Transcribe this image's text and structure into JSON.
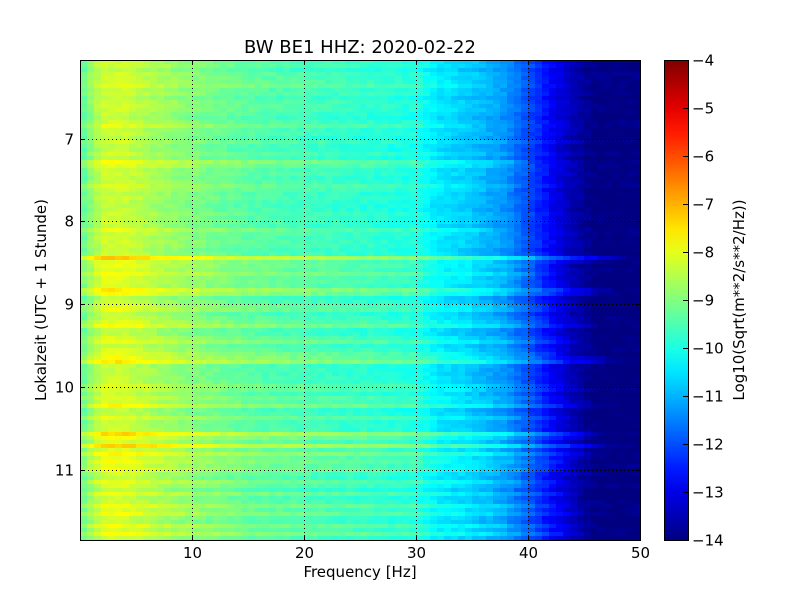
{
  "chart_data": {
    "type": "heatmap",
    "title": "BW BE1 HHZ: 2020-02-22",
    "xlabel": "Frequency [Hz]",
    "ylabel": "Lokalzeit (UTC + 1 Stunde)",
    "xlim": [
      0,
      50
    ],
    "ylim": [
      6.05,
      11.85
    ],
    "y_inverted": true,
    "x_ticks": [
      10,
      20,
      30,
      40,
      50
    ],
    "x_tick_labels": [
      "10",
      "20",
      "30",
      "40",
      "50"
    ],
    "y_ticks": [
      7,
      8,
      9,
      10,
      11
    ],
    "y_tick_labels": [
      "7",
      "8",
      "9",
      "10",
      "11"
    ],
    "grid": true,
    "colormap": "jet",
    "colorbar": {
      "label": "Log10(Sqrt(m**2/s**2/Hz))",
      "range": [
        -14,
        -4
      ],
      "ticks": [
        -4,
        -5,
        -6,
        -7,
        -8,
        -9,
        -10,
        -11,
        -12,
        -13,
        -14
      ],
      "tick_labels": [
        "−4",
        "−5",
        "−6",
        "−7",
        "−8",
        "−9",
        "−10",
        "−11",
        "−12",
        "−13",
        "−14"
      ]
    },
    "spectrum_profile": {
      "frequency_hz": [
        0,
        2,
        4,
        7,
        10,
        15,
        20,
        25,
        30,
        32,
        35,
        38,
        40,
        42,
        44,
        46,
        50
      ],
      "log_amplitude": [
        -9.4,
        -8.3,
        -8.3,
        -8.7,
        -9.0,
        -9.4,
        -9.6,
        -9.8,
        -10.0,
        -10.5,
        -10.8,
        -11.3,
        -12.0,
        -12.8,
        -13.5,
        -14.0,
        -14.0
      ]
    },
    "noise_bands": [
      {
        "time": 6.35,
        "strength": 0.25,
        "max_freq_hz": 34
      },
      {
        "time": 6.85,
        "strength": 0.2,
        "max_freq_hz": 32
      },
      {
        "time": 7.3,
        "strength": 0.55,
        "max_freq_hz": 38
      },
      {
        "time": 7.6,
        "strength": 0.3,
        "max_freq_hz": 36
      },
      {
        "time": 8.1,
        "strength": 0.25,
        "max_freq_hz": 36
      },
      {
        "time": 8.45,
        "strength": 1.1,
        "max_freq_hz": 46
      },
      {
        "time": 8.55,
        "strength": 0.5,
        "max_freq_hz": 40
      },
      {
        "time": 8.65,
        "strength": 0.6,
        "max_freq_hz": 40
      },
      {
        "time": 8.75,
        "strength": 0.45,
        "max_freq_hz": 42
      },
      {
        "time": 8.85,
        "strength": 1.0,
        "max_freq_hz": 45
      },
      {
        "time": 9.05,
        "strength": 0.5,
        "max_freq_hz": 42
      },
      {
        "time": 9.25,
        "strength": 0.55,
        "max_freq_hz": 44
      },
      {
        "time": 9.45,
        "strength": 0.5,
        "max_freq_hz": 43
      },
      {
        "time": 9.6,
        "strength": 0.4,
        "max_freq_hz": 42
      },
      {
        "time": 9.68,
        "strength": 1.15,
        "max_freq_hz": 46
      },
      {
        "time": 10.0,
        "strength": 0.45,
        "max_freq_hz": 42
      },
      {
        "time": 10.12,
        "strength": 0.35,
        "max_freq_hz": 42
      },
      {
        "time": 10.22,
        "strength": 0.6,
        "max_freq_hz": 44
      },
      {
        "time": 10.38,
        "strength": 0.35,
        "max_freq_hz": 42
      },
      {
        "time": 10.57,
        "strength": 0.9,
        "max_freq_hz": 44
      },
      {
        "time": 10.63,
        "strength": 0.6,
        "max_freq_hz": 44
      },
      {
        "time": 10.72,
        "strength": 1.05,
        "max_freq_hz": 45
      },
      {
        "time": 10.82,
        "strength": 0.75,
        "max_freq_hz": 44
      },
      {
        "time": 10.92,
        "strength": 0.6,
        "max_freq_hz": 43
      },
      {
        "time": 11.0,
        "strength": 0.5,
        "max_freq_hz": 43
      },
      {
        "time": 11.15,
        "strength": 0.4,
        "max_freq_hz": 42
      },
      {
        "time": 11.3,
        "strength": 0.5,
        "max_freq_hz": 43
      },
      {
        "time": 11.45,
        "strength": 0.4,
        "max_freq_hz": 42
      },
      {
        "time": 11.55,
        "strength": 0.45,
        "max_freq_hz": 43
      },
      {
        "time": 11.68,
        "strength": 0.55,
        "max_freq_hz": 44
      },
      {
        "time": 11.78,
        "strength": 0.45,
        "max_freq_hz": 43
      }
    ]
  }
}
